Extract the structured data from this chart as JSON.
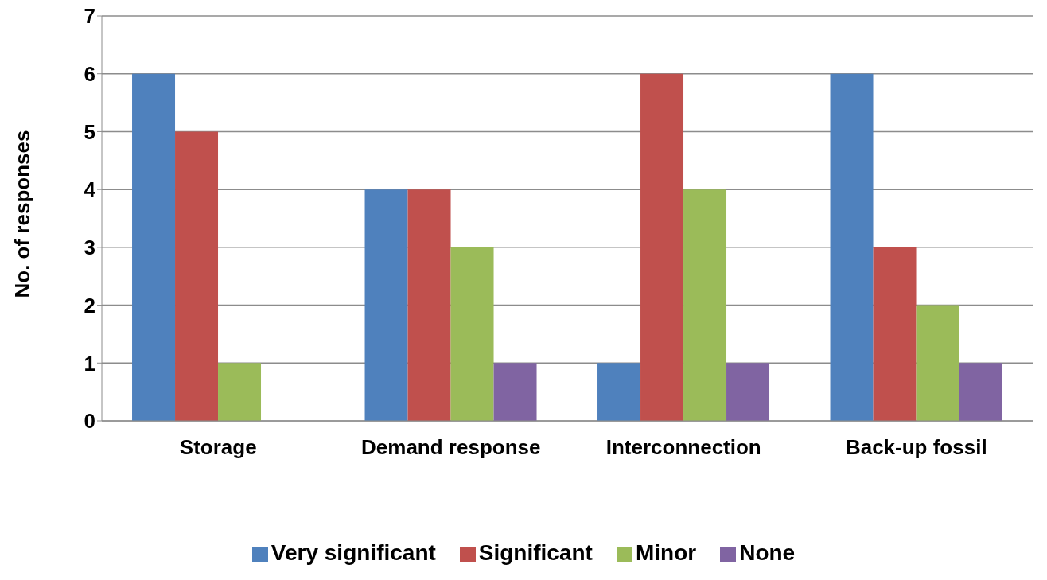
{
  "chart_data": {
    "type": "bar",
    "ylabel": "No. of responses",
    "categories": [
      "Storage",
      "Demand response",
      "Interconnection",
      "Back-up fossil"
    ],
    "series": [
      {
        "name": "Very significant",
        "color": "#4f81bd",
        "values": [
          6,
          4,
          1,
          6
        ]
      },
      {
        "name": "Significant",
        "color": "#c0504d",
        "values": [
          5,
          4,
          6,
          3
        ]
      },
      {
        "name": "Minor",
        "color": "#9bbb59",
        "values": [
          1,
          3,
          4,
          2
        ]
      },
      {
        "name": "None",
        "color": "#8064a2",
        "values": [
          0,
          1,
          1,
          1
        ]
      }
    ],
    "ylim": [
      0,
      7
    ],
    "yticks": [
      0,
      1,
      2,
      3,
      4,
      5,
      6,
      7
    ],
    "grid": "y",
    "legend": "bottom"
  }
}
